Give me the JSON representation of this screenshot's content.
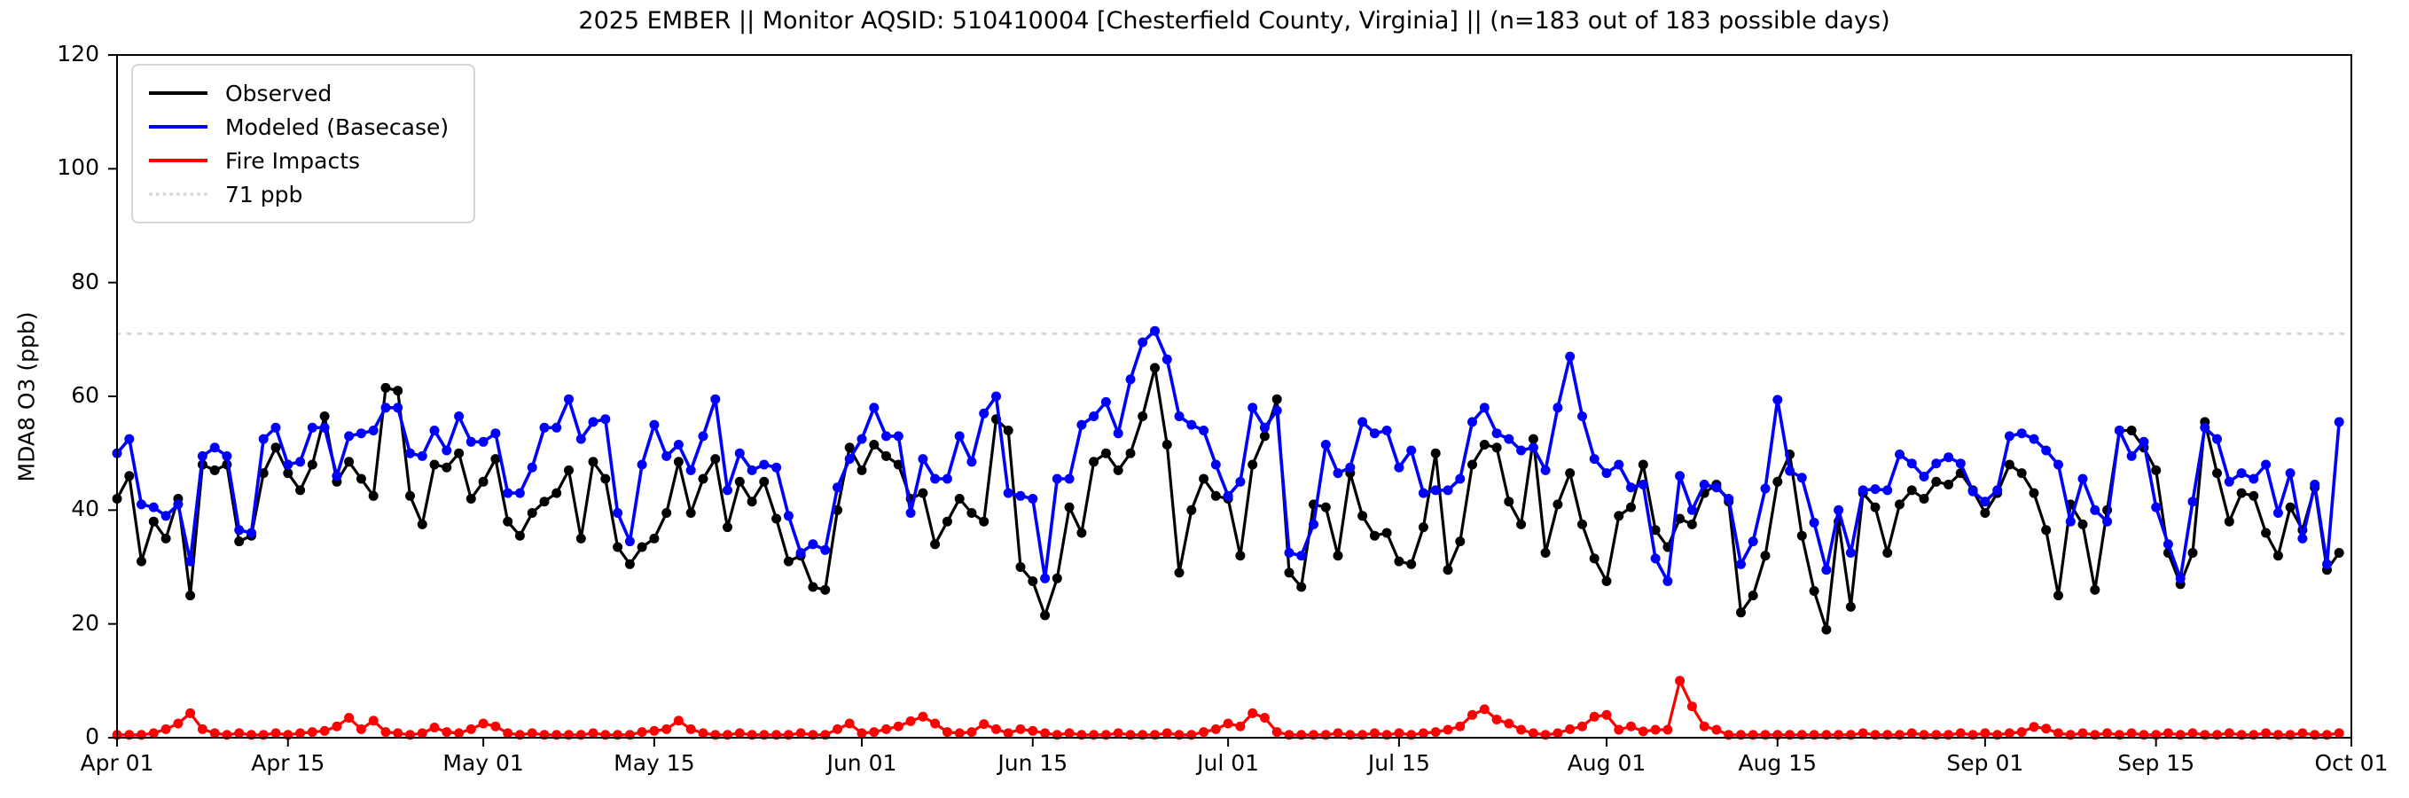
{
  "title": "2025 EMBER || Monitor AQSID: 510410004 [Chesterfield County, Virginia] || (n=183 out of 183 possible days)",
  "y_axis": {
    "label": "MDA8 O3 (ppb)"
  },
  "legend": {
    "items": [
      {
        "label": "Observed",
        "color": "#000000",
        "style": "solid"
      },
      {
        "label": "Modeled (Basecase)",
        "color": "#0000ff",
        "style": "solid"
      },
      {
        "label": "Fire Impacts",
        "color": "#ff0000",
        "style": "solid"
      },
      {
        "label": "71 ppb",
        "color": "#d8d8d8",
        "style": "dotted"
      }
    ]
  },
  "chart_data": {
    "type": "line",
    "title": "2025 EMBER || Monitor AQSID: 510410004 [Chesterfield County, Virginia] || (n=183 out of 183 possible days)",
    "xlabel": "",
    "ylabel": "MDA8 O3 (ppb)",
    "ylim": [
      0,
      120
    ],
    "x_axis_days": 183,
    "grid": false,
    "legend_position": "upper-left",
    "threshold": {
      "value": 71,
      "label": "71 ppb",
      "color": "#d8d8d8"
    },
    "y_ticks": [
      0,
      20,
      40,
      60,
      80,
      100,
      120
    ],
    "x_ticks": [
      {
        "label": "Apr 01",
        "day": 0
      },
      {
        "label": "Apr 15",
        "day": 14
      },
      {
        "label": "May 01",
        "day": 30
      },
      {
        "label": "May 15",
        "day": 44
      },
      {
        "label": "Jun 01",
        "day": 61
      },
      {
        "label": "Jun 15",
        "day": 75
      },
      {
        "label": "Jul 01",
        "day": 91
      },
      {
        "label": "Jul 15",
        "day": 105
      },
      {
        "label": "Aug 01",
        "day": 122
      },
      {
        "label": "Aug 15",
        "day": 136
      },
      {
        "label": "Sep 01",
        "day": 153
      },
      {
        "label": "Sep 15",
        "day": 167
      },
      {
        "label": "Oct 01",
        "day": 183
      }
    ],
    "series": [
      {
        "name": "Observed",
        "color": "#000000",
        "values": [
          42,
          46,
          31,
          38,
          35,
          42,
          25,
          48,
          47,
          48,
          34.5,
          35.5,
          46.5,
          51,
          46.5,
          43.5,
          48,
          56.5,
          45,
          48.5,
          45.5,
          42.5,
          61.5,
          61,
          42.5,
          37.5,
          48,
          47.5,
          50,
          42,
          45,
          49,
          38,
          35.5,
          39.5,
          41.5,
          43,
          47,
          35,
          48.5,
          45.5,
          33.5,
          30.5,
          33.5,
          35,
          39.5,
          48.5,
          39.5,
          45.5,
          49,
          37,
          45,
          41.5,
          45,
          38.5,
          31,
          32,
          26.5,
          26,
          40,
          51,
          47,
          51.5,
          49.5,
          48,
          42,
          43,
          34,
          38,
          42,
          39.5,
          38,
          56,
          54,
          30,
          27.5,
          21.5,
          28,
          40.5,
          36,
          48.5,
          50,
          47,
          50,
          56.5,
          65,
          51.5,
          29,
          40,
          45.5,
          42.5,
          42,
          32,
          48,
          53,
          59.5,
          29,
          26.5,
          41,
          40.5,
          32,
          46.5,
          39,
          35.5,
          36,
          31,
          30.5,
          37,
          50,
          29.5,
          34.5,
          48,
          51.5,
          51,
          41.5,
          37.5,
          52.5,
          32.5,
          41,
          46.5,
          37.5,
          31.5,
          27.5,
          39,
          40.5,
          48,
          36.5,
          33.5,
          38.5,
          37.5,
          43,
          44.5,
          41.5,
          22,
          25,
          32,
          45,
          49.8,
          35.5,
          25.8,
          19,
          38,
          23,
          43,
          40.5,
          32.5,
          41,
          43.5,
          42,
          45,
          44.5,
          46.5,
          43.5,
          39.5,
          43,
          48,
          46.5,
          43,
          36.5,
          25,
          41,
          37.5,
          26,
          40,
          54,
          54,
          51,
          47,
          32.5,
          27,
          32.5,
          55.5,
          46.5,
          38,
          43,
          42.5,
          36,
          32,
          40.5,
          36.5,
          44,
          29.5,
          32.5
        ]
      },
      {
        "name": "Modeled (Basecase)",
        "color": "#0000ff",
        "values": [
          50,
          52.5,
          41,
          40.5,
          39,
          41,
          31,
          49.5,
          51,
          49.5,
          36.5,
          36,
          52.5,
          54.5,
          48,
          48.5,
          54.5,
          54.5,
          46,
          53,
          53.5,
          54,
          58,
          58,
          50,
          49.5,
          54,
          50.5,
          56.5,
          52,
          52,
          53.5,
          43,
          43,
          47.5,
          54.5,
          54.5,
          59.5,
          52.5,
          55.5,
          56,
          39.5,
          34.5,
          48,
          55,
          49.5,
          51.5,
          47,
          53,
          59.5,
          43.5,
          50,
          47,
          48,
          47.5,
          39,
          32.5,
          34,
          33,
          44,
          49,
          52.5,
          58,
          53,
          53,
          39.5,
          49,
          45.5,
          45.5,
          53,
          48.5,
          57,
          60,
          43,
          42.5,
          42,
          28,
          45.5,
          45.5,
          55,
          56.5,
          59,
          53.5,
          63,
          69.5,
          71.5,
          66.5,
          56.5,
          55,
          54,
          48,
          42.5,
          45,
          58,
          54.5,
          57.5,
          32.5,
          32,
          37.5,
          51.5,
          46.5,
          47.5,
          55.5,
          53.5,
          54,
          47.5,
          50.5,
          43,
          43.5,
          43.5,
          45.5,
          55.5,
          58,
          53.5,
          52.5,
          50.5,
          51,
          47,
          58,
          67,
          56.5,
          49,
          46.5,
          48,
          44,
          44.5,
          31.5,
          27.5,
          46,
          40,
          44.5,
          44,
          42,
          30.5,
          34.5,
          43.8,
          59.4,
          46.9,
          45.7,
          37.8,
          29.5,
          40,
          32.5,
          43.5,
          43.7,
          43.5,
          49.8,
          48.2,
          45.9,
          48.2,
          49.3,
          48.2,
          43.3,
          41.5,
          43.5,
          53,
          53.5,
          52.5,
          50.5,
          48,
          38,
          45.5,
          40,
          38,
          54,
          49.5,
          52,
          40.5,
          34,
          28,
          41.5,
          54.5,
          52.5,
          45,
          46.5,
          45.5,
          48,
          39.5,
          46.5,
          35,
          44.5,
          30.5,
          55.5
        ]
      },
      {
        "name": "Fire Impacts",
        "color": "#ff0000",
        "values": [
          0.5,
          0.5,
          0.5,
          0.8,
          1.5,
          2.5,
          4.3,
          1.5,
          0.8,
          0.5,
          0.8,
          0.5,
          0.5,
          0.8,
          0.5,
          0.8,
          1,
          1.2,
          2,
          3.5,
          1.5,
          3,
          1,
          0.8,
          0.5,
          0.8,
          1.8,
          1,
          0.8,
          1.5,
          2.5,
          2,
          0.8,
          0.5,
          0.8,
          0.5,
          0.5,
          0.5,
          0.5,
          0.8,
          0.5,
          0.5,
          0.5,
          1,
          1.2,
          1.5,
          3,
          1.5,
          0.8,
          0.5,
          0.5,
          0.8,
          0.5,
          0.5,
          0.5,
          0.5,
          0.8,
          0.5,
          0.5,
          1.5,
          2.5,
          0.8,
          1,
          1.5,
          2,
          2.9,
          3.7,
          2.5,
          1,
          0.8,
          1,
          2.4,
          1.5,
          0.8,
          1.5,
          1.2,
          0.8,
          0.5,
          0.8,
          0.5,
          0.5,
          0.5,
          0.8,
          0.5,
          0.5,
          0.5,
          0.8,
          0.5,
          0.5,
          1,
          1.5,
          2.5,
          2,
          4.3,
          3.5,
          1,
          0.5,
          0.5,
          0.5,
          0.5,
          0.8,
          0.5,
          0.5,
          0.8,
          0.5,
          0.8,
          0.5,
          0.8,
          1,
          1.4,
          2,
          4,
          5,
          3.2,
          2.5,
          1.4,
          0.8,
          0.5,
          0.8,
          1.5,
          2,
          3.7,
          4,
          1.4,
          2,
          1.1,
          1.4,
          1.4,
          10,
          5.5,
          2,
          1.4,
          0.5,
          0.5,
          0.5,
          0.5,
          0.5,
          0.5,
          0.5,
          0.5,
          0.5,
          0.5,
          0.5,
          0.8,
          0.5,
          0.5,
          0.5,
          0.8,
          0.5,
          0.5,
          0.5,
          0.8,
          0.5,
          0.8,
          0.5,
          0.8,
          1,
          1.9,
          1.6,
          0.8,
          0.5,
          0.8,
          0.5,
          0.8,
          0.5,
          0.8,
          0.5,
          0.5,
          0.8,
          0.5,
          0.8,
          0.5,
          0.5,
          0.8,
          0.5,
          0.5,
          0.8,
          0.5,
          0.5,
          0.8,
          0.5,
          0.5,
          0.8
        ]
      }
    ]
  }
}
